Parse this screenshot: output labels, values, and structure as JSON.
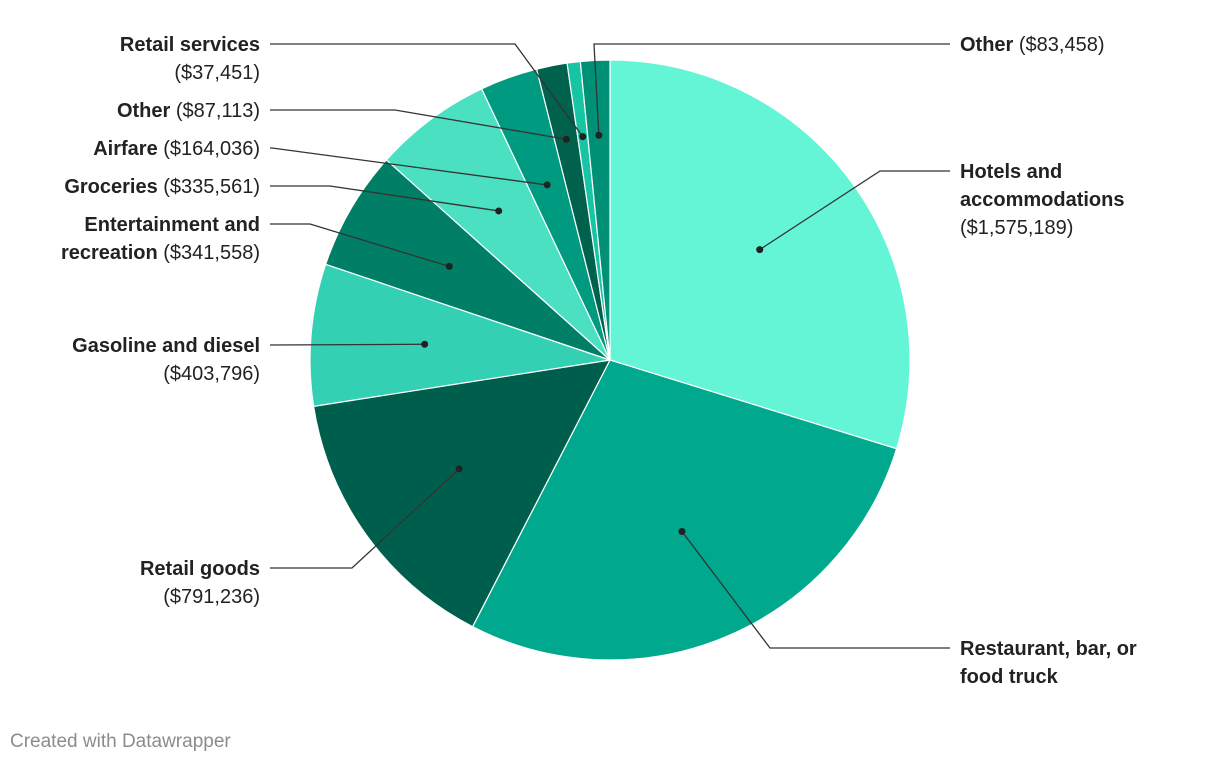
{
  "chart_data": {
    "type": "pie",
    "slices": [
      {
        "name": "Hotels and accommodations",
        "value": 1575189,
        "value_label": "($1,575,189)",
        "color": "#64f5d7"
      },
      {
        "name": "Restaurant, bar, or food truck",
        "value": 1470000,
        "value_label": "",
        "color": "#00a88e"
      },
      {
        "name": "Retail goods",
        "value": 791236,
        "value_label": "($791,236)",
        "color": "#005f4c"
      },
      {
        "name": "Gasoline and diesel",
        "value": 403796,
        "value_label": "($403,796)",
        "color": "#33d0b4"
      },
      {
        "name": "Entertainment and recreation",
        "value": 341558,
        "value_label": "($341,558)",
        "color": "#007f66"
      },
      {
        "name": "Groceries",
        "value": 335561,
        "value_label": "($335,561)",
        "color": "#4be0c2"
      },
      {
        "name": "Airfare",
        "value": 164036,
        "value_label": "($164,036)",
        "color": "#009a80"
      },
      {
        "name": "Other",
        "value": 87113,
        "value_label": "($87,113)",
        "color": "#00614d"
      },
      {
        "name": "Retail services",
        "value": 37451,
        "value_label": "($37,451)",
        "color": "#17c4a4"
      },
      {
        "name": "Other",
        "value": 83458,
        "value_label": "($83,458)",
        "color": "#009076"
      }
    ]
  },
  "credit": "Created with Datawrapper"
}
